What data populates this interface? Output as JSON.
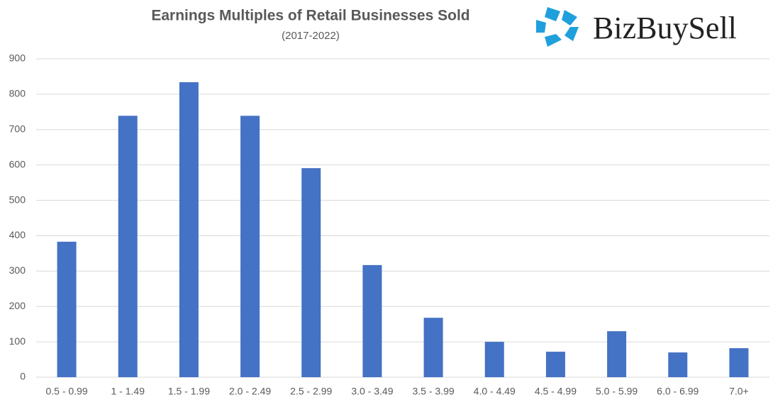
{
  "chart_data": {
    "type": "bar",
    "title": "Earnings Multiples of Retail Businesses Sold",
    "subtitle": "(2017-2022)",
    "logo": "BizBuySell",
    "categories": [
      "0.5 - 0.99",
      "1 - 1.49",
      "1.5 - 1.99",
      "2.0 - 2.49",
      "2.5 - 2.99",
      "3.0 - 3.49",
      "3.5 - 3.99",
      "4.0 - 4.49",
      "4.5 - 4.99",
      "5.0 - 5.99",
      "6.0 - 6.99",
      "7.0+"
    ],
    "values": [
      383,
      739,
      834,
      739,
      591,
      317,
      168,
      100,
      72,
      130,
      70,
      82
    ],
    "color": "#4472c4",
    "ylim": [
      0,
      900
    ],
    "yticks": [
      0,
      100,
      200,
      300,
      400,
      500,
      600,
      700,
      800,
      900
    ],
    "grid": true
  }
}
